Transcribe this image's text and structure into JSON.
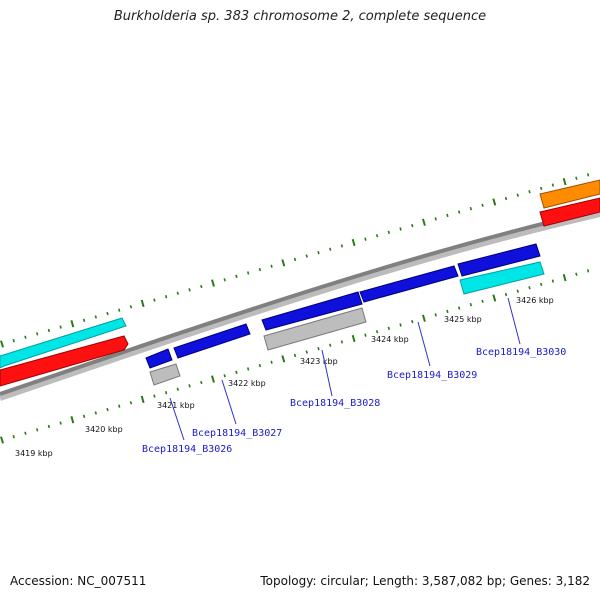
{
  "title": "Burkholderia sp. 383 chromosome 2, complete sequence",
  "footer": {
    "accession": "Accession: NC_007511",
    "summary": "Topology: circular; Length: 3,587,082 bp; Genes: 3,182"
  },
  "colors": {
    "background": "#ffffff",
    "backbone": "#808080",
    "tick": "#2a7a1a",
    "gene_blue": "#1010dd",
    "gene_gray": "#bdbdbd",
    "gene_cyan": "#00e6e6",
    "gene_red": "#ff1010",
    "gene_orange": "#ff8c00",
    "tag_line": "#3030cc",
    "tag_text": "#1a1acc"
  },
  "ruler_labels": [
    "3419 kbp",
    "3420 kbp",
    "3421 kbp",
    "3422 kbp",
    "3423 kbp",
    "3424 kbp",
    "3425 kbp",
    "3426 kbp"
  ],
  "gene_tags": [
    "Bcep18194_B3026",
    "Bcep18194_B3027",
    "Bcep18194_B3028",
    "Bcep18194_B3029",
    "Bcep18194_B3030"
  ]
}
